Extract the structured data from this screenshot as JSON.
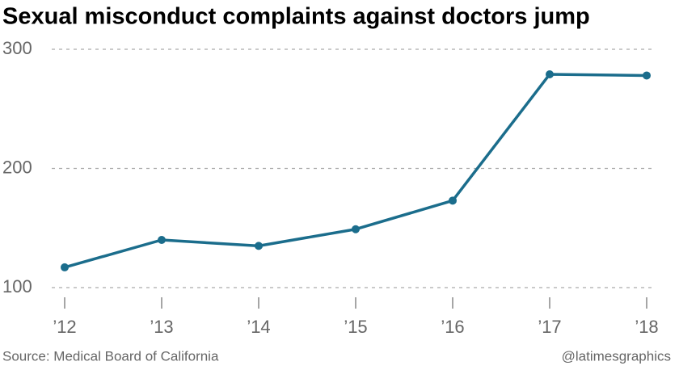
{
  "chart_data": {
    "type": "line",
    "title": "Sexual misconduct complaints against doctors jump",
    "categories": [
      "’12",
      "’13",
      "’14",
      "’15",
      "’16",
      "’17",
      "’18"
    ],
    "values": [
      117,
      140,
      135,
      149,
      173,
      279,
      278
    ],
    "color": "#1b6d8c",
    "ylim": [
      100,
      300
    ],
    "yticks": [
      100,
      200,
      300
    ],
    "grid": true,
    "source": "Source: Medical Board of California",
    "credit": "@latimesgraphics"
  }
}
